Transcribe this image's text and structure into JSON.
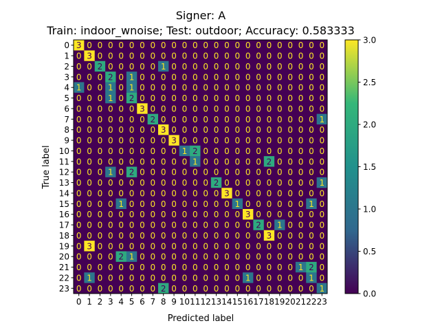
{
  "chart_data": {
    "type": "heatmap",
    "title": "Signer: A",
    "subtitle": "Train: indoor_wnoise; Test: outdoor; Accuracy: 0.583333",
    "xlabel": "Predicted label",
    "ylabel": "True label",
    "labels": [
      "0",
      "1",
      "2",
      "3",
      "4",
      "5",
      "6",
      "7",
      "8",
      "9",
      "10",
      "11",
      "12",
      "13",
      "14",
      "15",
      "16",
      "17",
      "18",
      "19",
      "20",
      "21",
      "22",
      "23"
    ],
    "matrix": [
      [
        3,
        0,
        0,
        0,
        0,
        0,
        0,
        0,
        0,
        0,
        0,
        0,
        0,
        0,
        0,
        0,
        0,
        0,
        0,
        0,
        0,
        0,
        0,
        0
      ],
      [
        0,
        3,
        0,
        0,
        0,
        0,
        0,
        0,
        0,
        0,
        0,
        0,
        0,
        0,
        0,
        0,
        0,
        0,
        0,
        0,
        0,
        0,
        0,
        0
      ],
      [
        0,
        0,
        2,
        0,
        0,
        0,
        0,
        0,
        1,
        0,
        0,
        0,
        0,
        0,
        0,
        0,
        0,
        0,
        0,
        0,
        0,
        0,
        0,
        0
      ],
      [
        0,
        0,
        0,
        2,
        0,
        1,
        0,
        0,
        0,
        0,
        0,
        0,
        0,
        0,
        0,
        0,
        0,
        0,
        0,
        0,
        0,
        0,
        0,
        0
      ],
      [
        1,
        0,
        0,
        1,
        0,
        1,
        0,
        0,
        0,
        0,
        0,
        0,
        0,
        0,
        0,
        0,
        0,
        0,
        0,
        0,
        0,
        0,
        0,
        0
      ],
      [
        0,
        0,
        0,
        1,
        0,
        2,
        0,
        0,
        0,
        0,
        0,
        0,
        0,
        0,
        0,
        0,
        0,
        0,
        0,
        0,
        0,
        0,
        0,
        0
      ],
      [
        0,
        0,
        0,
        0,
        0,
        0,
        3,
        0,
        0,
        0,
        0,
        0,
        0,
        0,
        0,
        0,
        0,
        0,
        0,
        0,
        0,
        0,
        0,
        0
      ],
      [
        0,
        0,
        0,
        0,
        0,
        0,
        0,
        2,
        0,
        0,
        0,
        0,
        0,
        0,
        0,
        0,
        0,
        0,
        0,
        0,
        0,
        0,
        0,
        1
      ],
      [
        0,
        0,
        0,
        0,
        0,
        0,
        0,
        0,
        3,
        0,
        0,
        0,
        0,
        0,
        0,
        0,
        0,
        0,
        0,
        0,
        0,
        0,
        0,
        0
      ],
      [
        0,
        0,
        0,
        0,
        0,
        0,
        0,
        0,
        0,
        3,
        0,
        0,
        0,
        0,
        0,
        0,
        0,
        0,
        0,
        0,
        0,
        0,
        0,
        0
      ],
      [
        0,
        0,
        0,
        0,
        0,
        0,
        0,
        0,
        0,
        0,
        1,
        2,
        0,
        0,
        0,
        0,
        0,
        0,
        0,
        0,
        0,
        0,
        0,
        0
      ],
      [
        0,
        0,
        0,
        0,
        0,
        0,
        0,
        0,
        0,
        0,
        0,
        1,
        0,
        0,
        0,
        0,
        0,
        0,
        2,
        0,
        0,
        0,
        0,
        0
      ],
      [
        0,
        0,
        0,
        1,
        0,
        2,
        0,
        0,
        0,
        0,
        0,
        0,
        0,
        0,
        0,
        0,
        0,
        0,
        0,
        0,
        0,
        0,
        0,
        0
      ],
      [
        0,
        0,
        0,
        0,
        0,
        0,
        0,
        0,
        0,
        0,
        0,
        0,
        0,
        2,
        0,
        0,
        0,
        0,
        0,
        0,
        0,
        0,
        0,
        1
      ],
      [
        0,
        0,
        0,
        0,
        0,
        0,
        0,
        0,
        0,
        0,
        0,
        0,
        0,
        0,
        3,
        0,
        0,
        0,
        0,
        0,
        0,
        0,
        0,
        0
      ],
      [
        0,
        0,
        0,
        0,
        1,
        0,
        0,
        0,
        0,
        0,
        0,
        0,
        0,
        0,
        0,
        1,
        0,
        0,
        0,
        0,
        0,
        0,
        1,
        0
      ],
      [
        0,
        0,
        0,
        0,
        0,
        0,
        0,
        0,
        0,
        0,
        0,
        0,
        0,
        0,
        0,
        0,
        3,
        0,
        0,
        0,
        0,
        0,
        0,
        0
      ],
      [
        0,
        0,
        0,
        0,
        0,
        0,
        0,
        0,
        0,
        0,
        0,
        0,
        0,
        0,
        0,
        0,
        0,
        2,
        0,
        1,
        0,
        0,
        0,
        0
      ],
      [
        0,
        0,
        0,
        0,
        0,
        0,
        0,
        0,
        0,
        0,
        0,
        0,
        0,
        0,
        0,
        0,
        0,
        0,
        3,
        0,
        0,
        0,
        0,
        0
      ],
      [
        0,
        3,
        0,
        0,
        0,
        0,
        0,
        0,
        0,
        0,
        0,
        0,
        0,
        0,
        0,
        0,
        0,
        0,
        0,
        0,
        0,
        0,
        0,
        0
      ],
      [
        0,
        0,
        0,
        0,
        2,
        1,
        0,
        0,
        0,
        0,
        0,
        0,
        0,
        0,
        0,
        0,
        0,
        0,
        0,
        0,
        0,
        0,
        0,
        0
      ],
      [
        0,
        0,
        0,
        0,
        0,
        0,
        0,
        0,
        0,
        0,
        0,
        0,
        0,
        0,
        0,
        0,
        0,
        0,
        0,
        0,
        0,
        1,
        2,
        0
      ],
      [
        0,
        1,
        0,
        0,
        0,
        0,
        0,
        0,
        0,
        0,
        0,
        0,
        0,
        0,
        0,
        0,
        1,
        0,
        0,
        0,
        0,
        0,
        1,
        0
      ],
      [
        0,
        0,
        0,
        0,
        0,
        0,
        0,
        0,
        2,
        0,
        0,
        0,
        0,
        0,
        0,
        0,
        0,
        0,
        0,
        0,
        0,
        0,
        0,
        1
      ]
    ],
    "colorbar": {
      "vmin": 0.0,
      "vmax": 3.0,
      "tick_values": [
        0.0,
        0.5,
        1.0,
        1.5,
        2.0,
        2.5,
        3.0
      ],
      "tick_labels": [
        "0.0",
        "0.5",
        "1.0",
        "1.5",
        "2.0",
        "2.5",
        "3.0"
      ]
    },
    "colormap": [
      "#440154",
      "#31688e",
      "#21918c",
      "#35b779",
      "#fde725"
    ]
  }
}
